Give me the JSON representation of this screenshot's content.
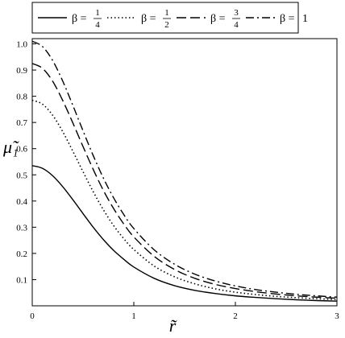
{
  "chart_data": {
    "type": "line",
    "title": "",
    "xlabel": "r̃",
    "ylabel": "μ̃₁",
    "xlim": [
      0,
      3
    ],
    "ylim": [
      0,
      1.02
    ],
    "x_ticks": [
      "0",
      "1",
      "2",
      "3"
    ],
    "y_ticks": [
      "0.1",
      "0.2",
      "0.3",
      "0.4",
      "0.5",
      "0.6",
      "0.7",
      "0.8",
      "0.9",
      "1.0"
    ],
    "grid": false,
    "legend_position": "top",
    "x": [
      0,
      0.1,
      0.2,
      0.3,
      0.4,
      0.5,
      0.6,
      0.7,
      0.8,
      0.9,
      1.0,
      1.2,
      1.4,
      1.6,
      1.8,
      2.0,
      2.2,
      2.4,
      2.6,
      2.8,
      3.0
    ],
    "series": [
      {
        "name": "β = 1/4",
        "beta_num": "1",
        "beta_den": "4",
        "dash": "solid",
        "values": [
          0.535,
          0.525,
          0.497,
          0.455,
          0.405,
          0.352,
          0.3,
          0.253,
          0.212,
          0.178,
          0.148,
          0.105,
          0.077,
          0.059,
          0.047,
          0.038,
          0.032,
          0.027,
          0.023,
          0.02,
          0.018
        ]
      },
      {
        "name": "β = 1/2",
        "beta_num": "1",
        "beta_den": "2",
        "dash": "dotted",
        "values": [
          0.785,
          0.77,
          0.728,
          0.665,
          0.59,
          0.512,
          0.436,
          0.367,
          0.307,
          0.257,
          0.215,
          0.152,
          0.111,
          0.084,
          0.065,
          0.052,
          0.043,
          0.036,
          0.031,
          0.027,
          0.024
        ]
      },
      {
        "name": "β = 3/4",
        "beta_num": "3",
        "beta_den": "4",
        "dash": "dashed",
        "values": [
          0.925,
          0.907,
          0.858,
          0.784,
          0.698,
          0.608,
          0.521,
          0.441,
          0.372,
          0.313,
          0.263,
          0.189,
          0.139,
          0.105,
          0.082,
          0.066,
          0.054,
          0.045,
          0.038,
          0.033,
          0.029
        ]
      },
      {
        "name": "β = 1",
        "beta_num": "",
        "beta_den": "",
        "dash": "dashdot",
        "values": [
          1.01,
          0.99,
          0.937,
          0.858,
          0.765,
          0.668,
          0.574,
          0.488,
          0.413,
          0.349,
          0.295,
          0.214,
          0.159,
          0.121,
          0.095,
          0.076,
          0.062,
          0.052,
          0.044,
          0.038,
          0.033
        ]
      }
    ]
  }
}
